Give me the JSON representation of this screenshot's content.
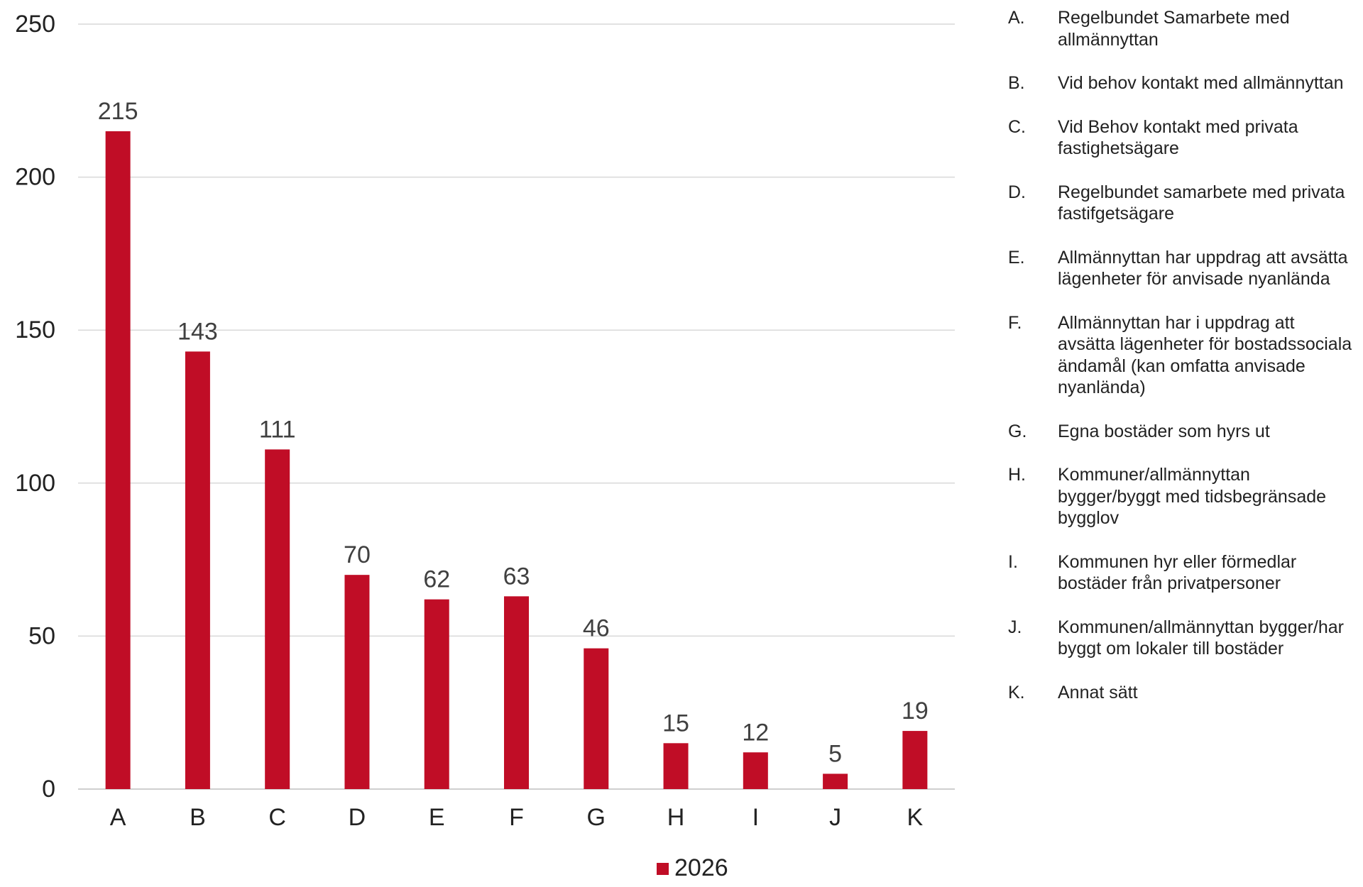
{
  "chart_data": {
    "type": "bar",
    "title": "",
    "xlabel": "",
    "ylabel": "",
    "categories": [
      "A",
      "B",
      "C",
      "D",
      "E",
      "F",
      "G",
      "H",
      "I",
      "J",
      "K"
    ],
    "series": [
      {
        "name": "2026",
        "values": [
          215,
          143,
          111,
          70,
          62,
          63,
          46,
          15,
          12,
          5,
          19
        ]
      }
    ],
    "ylim": [
      0,
      250
    ],
    "yticks": [
      0,
      50,
      100,
      150,
      200,
      250
    ],
    "grid": true,
    "data_labels": true,
    "legend_position": "bottom",
    "bar_color": "#C00D26",
    "grid_color": "#D9D9D9"
  },
  "legend_key": [
    {
      "letter": "A.",
      "text": "Regelbundet Samarbete med allmännyttan"
    },
    {
      "letter": "B.",
      "text": "Vid behov kontakt med allmännyttan"
    },
    {
      "letter": "C.",
      "text": "Vid Behov kontakt med privata fastighetsägare"
    },
    {
      "letter": "D.",
      "text": "Regelbundet samarbete med privata fastifgetsägare"
    },
    {
      "letter": "E.",
      "text": "Allmännyttan har uppdrag att avsätta lägenheter för anvisade nyanlända"
    },
    {
      "letter": "F.",
      "text": "Allmännyttan har i uppdrag att avsätta lägenheter för bostadssociala ändamål (kan omfatta anvisade nyanlända)"
    },
    {
      "letter": "G.",
      "text": "Egna bostäder som hyrs ut"
    },
    {
      "letter": "H.",
      "text": "Kommuner/allmännyttan bygger/byggt med tidsbegränsade bygglov"
    },
    {
      "letter": "I.",
      "text": "Kommunen hyr eller förmedlar bostäder från privatpersoner"
    },
    {
      "letter": "J.",
      "text": "Kommunen/allmännyttan bygger/har byggt om lokaler till bostäder"
    },
    {
      "letter": "K.",
      "text": "Annat sätt"
    }
  ]
}
